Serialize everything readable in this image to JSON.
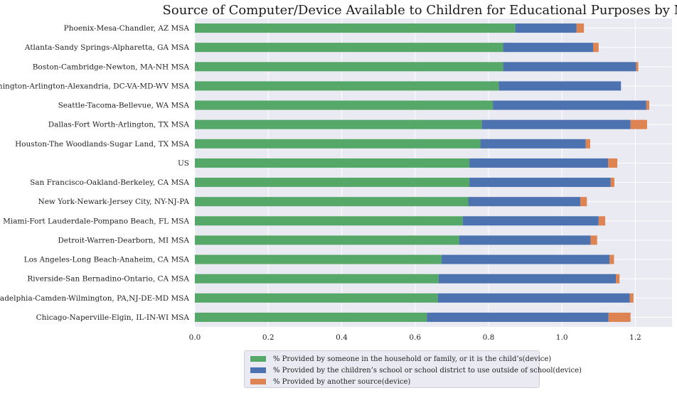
{
  "chart_data": {
    "type": "bar",
    "orientation": "horizontal",
    "stacked": true,
    "title": "Source of Computer/Device Available to Children for Educational Purposes by MSA",
    "xlabel": "",
    "ylabel": "",
    "xlim": [
      0,
      1.3
    ],
    "x_ticks": [
      "0.0",
      "0.2",
      "0.4",
      "0.6",
      "0.8",
      "1.0",
      "1.2"
    ],
    "grid": true,
    "legend_position": "bottom-center",
    "categories": [
      "Phoenix-Mesa-Chandler, AZ MSA",
      "Atlanta-Sandy Springs-Alpharetta, GA MSA",
      "Boston-Cambridge-Newton, MA-NH MSA",
      "Washington-Arlington-Alexandria, DC-VA-MD-WV MSA",
      "Seattle-Tacoma-Bellevue, WA MSA",
      "Dallas-Fort Worth-Arlington, TX MSA",
      "Houston-The Woodlands-Sugar Land, TX MSA",
      "US",
      "San Francisco-Oakland-Berkeley, CA MSA",
      "New York-Newark-Jersey City, NY-NJ-PA",
      "Miami-Fort Lauderdale-Pompano Beach, FL MSA",
      "Detroit-Warren-Dearborn, MI MSA",
      "Los Angeles-Long Beach-Anaheim, CA MSA",
      "Riverside-San Bernadino-Ontario, CA MSA",
      "Philadelphia-Camden-Wilmington, PA,NJ-DE-MD MSA",
      "Chicago-Naperville-Elgin, IL-IN-WI MSA"
    ],
    "series": [
      {
        "name": "% Provided by someone in the household or family, or it is the child's(device)",
        "color": "#55a868",
        "values": [
          0.873,
          0.84,
          0.84,
          0.828,
          0.812,
          0.782,
          0.778,
          0.748,
          0.748,
          0.745,
          0.73,
          0.72,
          0.672,
          0.664,
          0.662,
          0.632
        ]
      },
      {
        "name": "% Provided by the children's school or school district to use outside of school(device)",
        "color": "#4c72b0",
        "values": [
          0.167,
          0.245,
          0.362,
          0.333,
          0.418,
          0.405,
          0.287,
          0.378,
          0.385,
          0.305,
          0.37,
          0.358,
          0.458,
          0.483,
          0.523,
          0.495
        ]
      },
      {
        "name": "% Provided by another source(device)",
        "color": "#dd8452",
        "values": [
          0.02,
          0.015,
          0.006,
          0.0,
          0.008,
          0.045,
          0.012,
          0.025,
          0.01,
          0.018,
          0.018,
          0.018,
          0.012,
          0.01,
          0.01,
          0.06
        ]
      }
    ]
  },
  "legend": {
    "items": [
      "% Provided by someone in the household or family, or it is the child’s(device)",
      "% Provided by the children’s school or school district to use outside of school(device)",
      "% Provided by another source(device)"
    ]
  }
}
